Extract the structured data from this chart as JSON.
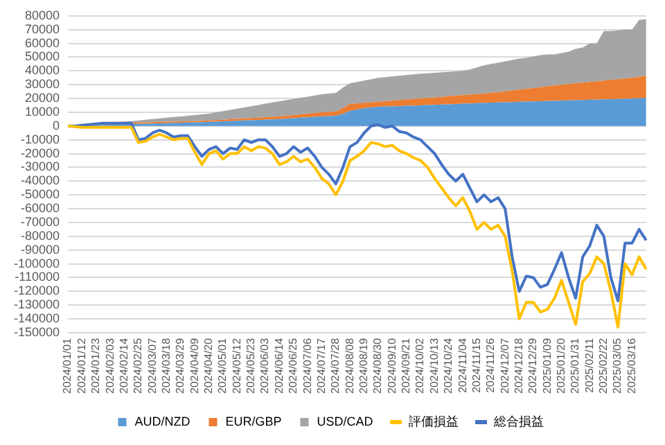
{
  "chart_data": {
    "type": "area",
    "stacked": true,
    "grid": "y",
    "legend": "bottom",
    "marker": "none",
    "categories": [
      "2024/01/01",
      null,
      "2024/01/12",
      null,
      "2024/01/23",
      null,
      "2024/02/03",
      null,
      "2024/02/14",
      null,
      "2024/02/25",
      null,
      "2024/03/07",
      null,
      "2024/03/18",
      null,
      "2024/03/29",
      null,
      "2024/04/09",
      null,
      "2024/04/20",
      null,
      "2024/05/01",
      null,
      "2024/05/12",
      null,
      "2024/05/23",
      null,
      "2024/06/03",
      null,
      "2024/06/14",
      null,
      "2024/06/25",
      null,
      "2024/07/06",
      null,
      "2024/07/17",
      null,
      "2024/07/28",
      null,
      "2024/08/08",
      null,
      "2024/08/19",
      null,
      "2024/08/30",
      null,
      "2024/09/10",
      null,
      "2024/09/21",
      null,
      "2024/10/02",
      null,
      "2024/10/13",
      null,
      "2024/10/24",
      null,
      "2024/11/04",
      null,
      "2024/11/15",
      null,
      "2024/11/26",
      null,
      "2024/12/07",
      null,
      "2024/12/18",
      null,
      "2024/12/29",
      null,
      "2025/01/09",
      null,
      "2025/01/20",
      null,
      "2025/01/31",
      null,
      "2025/02/11",
      null,
      "2025/02/22",
      null,
      "2025/03/05",
      null,
      "2025/03/16",
      null,
      null
    ],
    "ylim": [
      -150000,
      80000
    ],
    "yticks": [
      -150000,
      -140000,
      -130000,
      -120000,
      -110000,
      -100000,
      -90000,
      -80000,
      -70000,
      -60000,
      -50000,
      -40000,
      -30000,
      -20000,
      -10000,
      0,
      10000,
      20000,
      30000,
      40000,
      50000,
      60000,
      70000,
      80000
    ],
    "series": [
      {
        "name": "AUD/NZD",
        "type": "area",
        "color": "#5b9bd5",
        "values": [
          0,
          150,
          300,
          450,
          600,
          750,
          900,
          1050,
          1200,
          1350,
          1500,
          1650,
          1800,
          1950,
          2100,
          2250,
          2400,
          2550,
          2700,
          2850,
          3000,
          3200,
          3400,
          3600,
          3800,
          4000,
          4200,
          4400,
          4600,
          4800,
          5000,
          5300,
          5700,
          6000,
          6300,
          6700,
          7000,
          7200,
          7500,
          9000,
          11000,
          12000,
          13000,
          13500,
          14000,
          14200,
          14300,
          14500,
          14700,
          14800,
          15000,
          15200,
          15400,
          15600,
          15800,
          16000,
          16200,
          16400,
          16600,
          16800,
          17000,
          17100,
          17300,
          17400,
          17600,
          17700,
          17900,
          18000,
          18200,
          18300,
          18500,
          18600,
          18800,
          18900,
          19100,
          19200,
          19400,
          19500,
          19700,
          19800,
          20000,
          20200,
          20500
        ]
      },
      {
        "name": "EUR/GBP",
        "type": "area",
        "color": "#ed7d31",
        "values": [
          0,
          100,
          200,
          300,
          400,
          500,
          600,
          700,
          800,
          900,
          1000,
          1000,
          1000,
          1000,
          1000,
          1000,
          1000,
          1000,
          1000,
          1000,
          1000,
          1100,
          1200,
          1300,
          1400,
          1500,
          1600,
          1700,
          1800,
          1900,
          2000,
          2200,
          2300,
          2500,
          2700,
          2800,
          3000,
          3000,
          3000,
          4000,
          5000,
          4400,
          3800,
          3700,
          3600,
          3800,
          4100,
          4300,
          4500,
          4800,
          5000,
          5200,
          5400,
          5600,
          5800,
          6000,
          6200,
          6400,
          6600,
          6800,
          7000,
          7500,
          7900,
          8400,
          8800,
          9300,
          9700,
          10200,
          10600,
          11100,
          11500,
          11900,
          12200,
          12600,
          12900,
          13300,
          13600,
          14000,
          14300,
          14700,
          15000,
          15500,
          16000
        ]
      },
      {
        "name": "USD/CAD",
        "type": "area",
        "color": "#a5a5a5",
        "values": [
          0,
          150,
          300,
          450,
          600,
          750,
          900,
          1050,
          1200,
          1350,
          1500,
          1850,
          2200,
          2550,
          2900,
          3250,
          3600,
          3950,
          4300,
          4650,
          5000,
          5600,
          6200,
          6800,
          7400,
          8000,
          8600,
          9200,
          9800,
          10400,
          11000,
          11300,
          11700,
          12000,
          12300,
          12700,
          13000,
          13300,
          13500,
          15000,
          15000,
          15600,
          16200,
          16800,
          17400,
          17500,
          17600,
          17700,
          17800,
          17900,
          18000,
          17900,
          17900,
          17800,
          17700,
          17700,
          17600,
          18200,
          19300,
          20400,
          21000,
          21400,
          21800,
          22200,
          22600,
          22500,
          22900,
          23300,
          23200,
          22600,
          23000,
          23500,
          25000,
          25500,
          28000,
          27500,
          36000,
          35500,
          35500,
          35500,
          35000,
          41300,
          41000
        ]
      },
      {
        "name": "評価損益",
        "type": "line",
        "color": "#ffc000",
        "values": [
          0,
          -500,
          -1000,
          -1000,
          -1000,
          -1000,
          -1000,
          -1000,
          -1000,
          -1000,
          -12000,
          -11000,
          -8000,
          -6000,
          -8000,
          -10000,
          -9000,
          -9000,
          -19000,
          -28000,
          -20000,
          -18000,
          -24000,
          -20000,
          -20000,
          -15000,
          -18000,
          -15000,
          -16000,
          -20000,
          -28000,
          -26000,
          -22000,
          -26000,
          -24000,
          -30000,
          -38000,
          -42000,
          -50000,
          -40000,
          -25000,
          -22000,
          -18000,
          -12000,
          -13000,
          -15000,
          -14000,
          -18000,
          -20000,
          -23000,
          -25000,
          -30000,
          -38000,
          -45000,
          -52000,
          -58000,
          -52000,
          -62000,
          -75000,
          -70000,
          -75000,
          -72000,
          -80000,
          -105000,
          -140000,
          -128000,
          -128000,
          -135000,
          -133000,
          -125000,
          -112000,
          -128000,
          -144000,
          -113000,
          -107000,
          -95000,
          -100000,
          -120000,
          -146000,
          -100000,
          -108000,
          -95000,
          -104000
        ]
      },
      {
        "name": "総合損益",
        "type": "line",
        "color": "#4472c4",
        "values": [
          0,
          0,
          500,
          1000,
          1500,
          2000,
          2000,
          2000,
          2000,
          2000,
          -10000,
          -9000,
          -5000,
          -3000,
          -5000,
          -8000,
          -7000,
          -7000,
          -15000,
          -22000,
          -17000,
          -15000,
          -20000,
          -16000,
          -17000,
          -10000,
          -12000,
          -10000,
          -10000,
          -15000,
          -22000,
          -20000,
          -15000,
          -19000,
          -16000,
          -22000,
          -30000,
          -35000,
          -42000,
          -30000,
          -15000,
          -12000,
          -5000,
          0,
          1000,
          -1000,
          0,
          -4000,
          -5000,
          -8000,
          -10000,
          -15000,
          -20000,
          -28000,
          -35000,
          -40000,
          -35000,
          -45000,
          -55000,
          -50000,
          -55000,
          -52000,
          -60000,
          -95000,
          -120000,
          -109000,
          -110000,
          -117000,
          -115000,
          -104000,
          -92000,
          -110000,
          -125000,
          -95000,
          -87000,
          -72000,
          -80000,
          -110000,
          -127000,
          -85000,
          -85000,
          -75000,
          -83000
        ]
      }
    ]
  }
}
